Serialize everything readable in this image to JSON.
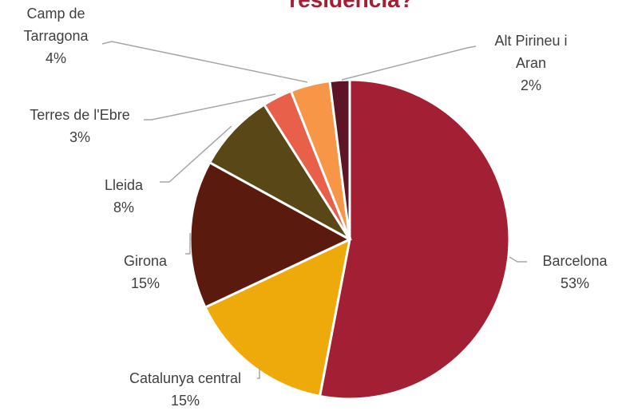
{
  "chart_data": {
    "type": "pie",
    "title": "residència?",
    "categories": [
      "Barcelona",
      "Catalunya central",
      "Girona",
      "Lleida",
      "Terres de l'Ebre",
      "Camp de Tarragona",
      "Alt Pirineu i Aran"
    ],
    "values": [
      53,
      15,
      15,
      8,
      3,
      4,
      2
    ],
    "value_labels": [
      "53%",
      "15%",
      "15%",
      "8%",
      "3%",
      "4%",
      "2%"
    ],
    "colors": [
      "#a31f34",
      "#eeaa0a",
      "#5a1a0e",
      "#5a4718",
      "#e8604a",
      "#f79646",
      "#5c1426"
    ]
  }
}
